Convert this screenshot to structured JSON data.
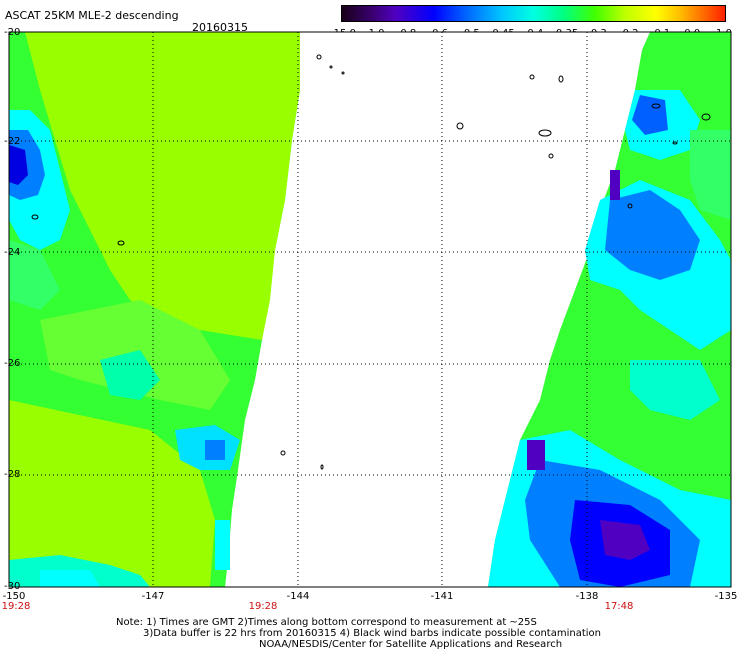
{
  "title": "ASCAT 25KM MLE-2 descending",
  "date": "20160315",
  "colorbar": {
    "ticks": [
      "-15.0",
      "-1.0",
      "-0.8",
      "-0.6",
      "-0.5",
      "-0.45",
      "-0.4",
      "-0.35",
      "-0.3",
      "-0.2",
      "-0.1",
      "0.0",
      "1.0"
    ]
  },
  "axes": {
    "y_labels": [
      "-20",
      "-22",
      "-24",
      "-26",
      "-28",
      "-30"
    ],
    "x_labels": [
      "-150",
      "-147",
      "-144",
      "-141",
      "-138",
      "-135"
    ]
  },
  "times": [
    "19:28",
    "19:28",
    "17:48"
  ],
  "notes": [
    "Note: 1) Times are GMT 2)Times along bottom correspond to measurement at ~25S",
    "3)Data buffer is 22 hrs from 20160315 4) Black wind barbs indicate possible contamination",
    "NOAA/NESDIS/Center for Satellite Applications and Research"
  ],
  "colors": {
    "green": "#33ff33",
    "yellow_green": "#99ff00",
    "cyan": "#00ffff",
    "blue": "#0000ff",
    "purple": "#5000c0",
    "label_red": "#cc1111"
  }
}
